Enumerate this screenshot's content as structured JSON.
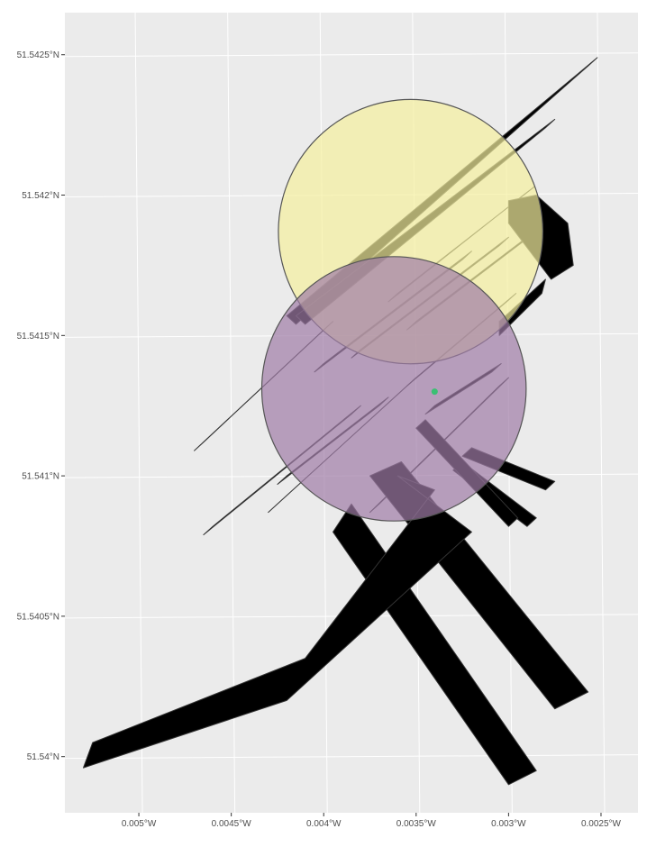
{
  "chart_data": {
    "type": "map",
    "title": "",
    "xlabel": "",
    "ylabel": "",
    "xlim": [
      -0.0054,
      -0.0023
    ],
    "ylim": [
      51.5398,
      51.54265
    ],
    "grid": true,
    "x_ticks": [
      {
        "value": -0.005,
        "label": "0.005°W"
      },
      {
        "value": -0.0045,
        "label": "0.0045°W"
      },
      {
        "value": -0.004,
        "label": "0.004°W"
      },
      {
        "value": -0.0035,
        "label": "0.0035°W"
      },
      {
        "value": -0.003,
        "label": "0.003°W"
      },
      {
        "value": -0.0025,
        "label": "0.0025°W"
      }
    ],
    "y_ticks": [
      {
        "value": 51.54,
        "label": "51.54°N"
      },
      {
        "value": 51.5405,
        "label": "51.5405°N"
      },
      {
        "value": 51.541,
        "label": "51.541°N"
      },
      {
        "value": 51.5415,
        "label": "51.5415°N"
      },
      {
        "value": 51.542,
        "label": "51.542°N"
      },
      {
        "value": 51.5425,
        "label": "51.5425°N"
      }
    ],
    "colors": {
      "panel": "#ebebeb",
      "grid": "#ffffff",
      "building_fill": "#000000",
      "building_stroke": "#333333",
      "yellow_buffer": "#f5ef9e",
      "purple_buffer": "#a07ca6",
      "buffer_stroke": "#555555",
      "point": "#3bbf73"
    },
    "buffers": [
      {
        "name": "",
        "center": [
          -0.00353,
          51.54187
        ],
        "radius_lon": 0.000715,
        "color": "#f5ef9e",
        "opacity": 0.7
      },
      {
        "name": "",
        "center": [
          -0.00362,
          51.54131
        ],
        "radius_lon": 0.000715,
        "color": "#a07ca6",
        "opacity": 0.7
      }
    ],
    "point": {
      "lon": -0.0034,
      "lat": 51.5413
    },
    "buildings": [
      [
        [
          -0.0042,
          51.54157
        ],
        [
          -0.00252,
          51.54249
        ],
        [
          -0.00257,
          51.54246
        ],
        [
          -0.00415,
          51.54154
        ]
      ],
      [
        [
          -0.00415,
          51.54157
        ],
        [
          -0.00275,
          51.54227
        ],
        [
          -0.0028,
          51.54224
        ],
        [
          -0.0041,
          51.54154
        ]
      ],
      [
        [
          -0.0036,
          51.54165
        ],
        [
          -0.00286,
          51.54203
        ],
        [
          -0.00292,
          51.542
        ],
        [
          -0.00365,
          51.54162
        ]
      ],
      [
        [
          -0.0035,
          51.54155
        ],
        [
          -0.0028,
          51.5419
        ],
        [
          -0.00285,
          51.54187
        ],
        [
          -0.00355,
          51.54152
        ]
      ],
      [
        [
          -0.0038,
          51.54145
        ],
        [
          -0.003,
          51.54185
        ],
        [
          -0.00305,
          51.54182
        ],
        [
          -0.00385,
          51.54142
        ]
      ],
      [
        [
          -0.004,
          51.5414
        ],
        [
          -0.0032,
          51.5418
        ],
        [
          -0.00325,
          51.54177
        ],
        [
          -0.00405,
          51.54137
        ]
      ],
      [
        [
          -0.0035,
          51.54135
        ],
        [
          -0.00296,
          51.54165
        ],
        [
          -0.00301,
          51.54162
        ],
        [
          -0.00355,
          51.54132
        ]
      ],
      [
        [
          -0.0034,
          51.54125
        ],
        [
          -0.00304,
          51.5414
        ],
        [
          -0.00309,
          51.54137
        ],
        [
          -0.00345,
          51.54122
        ]
      ],
      [
        [
          -0.00465,
          51.54112
        ],
        [
          -0.00395,
          51.54155
        ],
        [
          -0.004,
          51.54152
        ],
        [
          -0.0047,
          51.54109
        ]
      ],
      [
        [
          -0.0046,
          51.54082
        ],
        [
          -0.0038,
          51.54125
        ],
        [
          -0.00385,
          51.54122
        ],
        [
          -0.00465,
          51.54079
        ]
      ],
      [
        [
          -0.00425,
          51.5409
        ],
        [
          -0.0035,
          51.54135
        ],
        [
          -0.00355,
          51.54132
        ],
        [
          -0.0043,
          51.54087
        ]
      ],
      [
        [
          -0.0042,
          51.541
        ],
        [
          -0.00365,
          51.54128
        ],
        [
          -0.0037,
          51.54125
        ],
        [
          -0.00425,
          51.54097
        ]
      ],
      [
        [
          -0.0037,
          51.5409
        ],
        [
          -0.003,
          51.54135
        ],
        [
          -0.00305,
          51.54132
        ],
        [
          -0.00375,
          51.54087
        ]
      ],
      [
        [
          -0.003,
          51.5419
        ],
        [
          -0.00277,
          51.5417
        ],
        [
          -0.00265,
          51.54175
        ],
        [
          -0.00268,
          51.5419
        ],
        [
          -0.00285,
          51.542
        ],
        [
          -0.003,
          51.54198
        ]
      ],
      [
        [
          -0.00305,
          51.54155
        ],
        [
          -0.0028,
          51.5417
        ],
        [
          -0.00282,
          51.54165
        ],
        [
          -0.00305,
          51.5415
        ]
      ],
      [
        [
          -0.00358,
          51.54105
        ],
        [
          -0.00257,
          51.54023
        ],
        [
          -0.00275,
          51.54017
        ],
        [
          -0.00375,
          51.541
        ]
      ],
      [
        [
          -0.00385,
          51.5409
        ],
        [
          -0.00285,
          51.53995
        ],
        [
          -0.003,
          51.5399
        ],
        [
          -0.00395,
          51.5408
        ]
      ],
      [
        [
          -0.0032,
          51.5411
        ],
        [
          -0.00275,
          51.54098
        ],
        [
          -0.0028,
          51.54095
        ],
        [
          -0.00325,
          51.54107
        ]
      ],
      [
        [
          -0.00325,
          51.54105
        ],
        [
          -0.00285,
          51.54085
        ],
        [
          -0.0029,
          51.54082
        ],
        [
          -0.0033,
          51.54102
        ]
      ],
      [
        [
          -0.00345,
          51.5412
        ],
        [
          -0.00295,
          51.54085
        ],
        [
          -0.003,
          51.54082
        ],
        [
          -0.0035,
          51.54117
        ]
      ],
      [
        [
          -0.0036,
          51.541
        ],
        [
          -0.0032,
          51.5408
        ],
        [
          -0.0042,
          51.5402
        ],
        [
          -0.0053,
          51.53996
        ],
        [
          -0.00525,
          51.54005
        ],
        [
          -0.0041,
          51.54035
        ],
        [
          -0.0034,
          51.54095
        ]
      ]
    ]
  }
}
